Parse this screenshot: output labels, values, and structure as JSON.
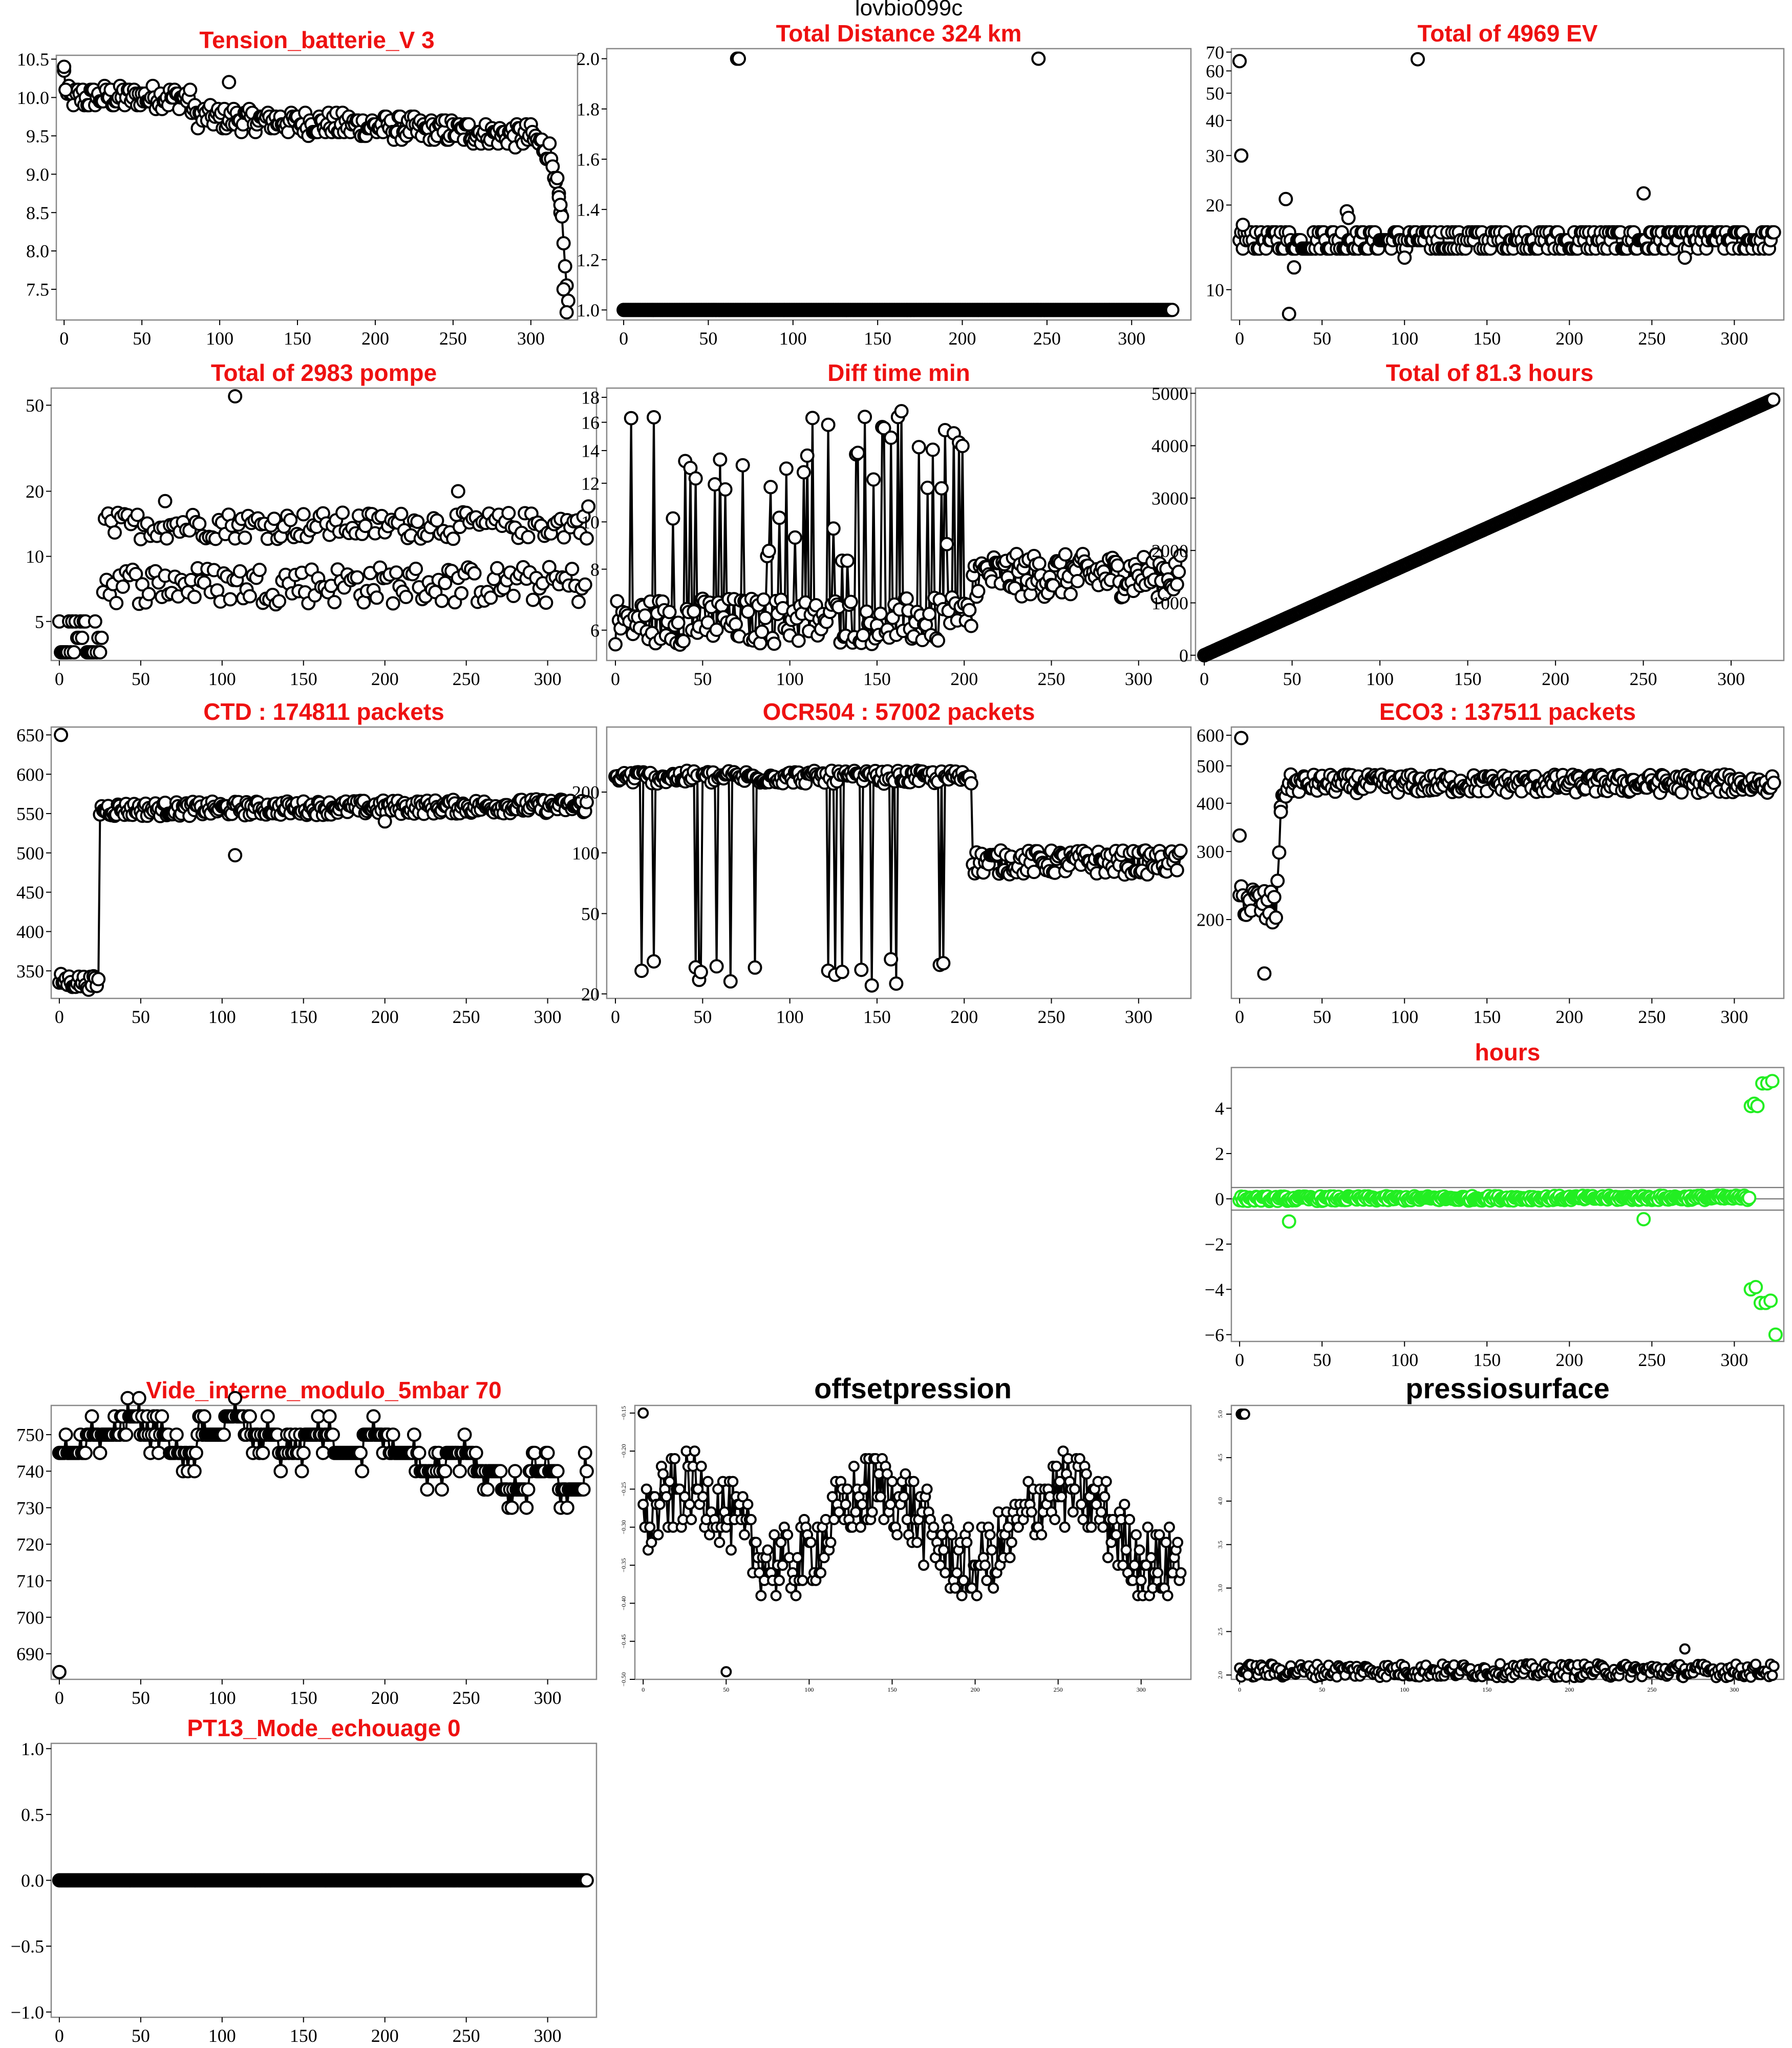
{
  "figure_title": "lovbio099c",
  "chart_data": [
    {
      "id": "tension",
      "type": "scatter",
      "title": "Tension_batterie_V 3",
      "title_color": "red",
      "connected": true,
      "xlim": [
        -5,
        330
      ],
      "ylim": [
        7.1,
        10.55
      ],
      "xticks": [
        0,
        50,
        100,
        150,
        200,
        250,
        300
      ],
      "yticks": [
        7.5,
        8.0,
        8.5,
        9.0,
        9.5,
        10.0,
        10.5
      ],
      "x_start": 0,
      "gen": {
        "kind": "ramp",
        "n": 325,
        "points": [
          [
            0,
            10.3
          ],
          [
            2,
            10.0
          ],
          [
            80,
            10.0
          ],
          [
            85,
            9.75
          ],
          [
            300,
            9.5
          ],
          [
            312,
            9.3
          ],
          [
            316,
            9.0
          ],
          [
            320,
            8.3
          ],
          [
            324,
            7.2
          ]
        ],
        "noise": 0.15,
        "step": 0.05
      },
      "extra": [
        [
          0,
          10.4
        ],
        [
          1,
          10.1
        ],
        [
          106,
          10.2
        ],
        [
          318,
          8.7
        ],
        [
          319,
          8.6
        ],
        [
          321,
          7.5
        ],
        [
          323,
          7.2
        ]
      ]
    },
    {
      "id": "distance",
      "type": "scatter",
      "title": "Total Distance  324  km",
      "title_color": "red",
      "connected": false,
      "xlim": [
        -10,
        335
      ],
      "ylim": [
        0.96,
        2.04
      ],
      "xticks": [
        0,
        50,
        100,
        150,
        200,
        250,
        300
      ],
      "yticks": [
        1.0,
        1.2,
        1.4,
        1.6,
        1.8,
        2.0
      ],
      "x_start": 0,
      "gen": {
        "kind": "const",
        "n": 325,
        "value": 1.0
      },
      "extra": [
        [
          67,
          2.0
        ],
        [
          68,
          2.0
        ],
        [
          245,
          2.0
        ]
      ]
    },
    {
      "id": "ev",
      "type": "scatter",
      "title": "Total of  4969  EV",
      "title_color": "red",
      "connected": false,
      "log": true,
      "xlim": [
        -5,
        330
      ],
      "ylim": [
        7.8,
        72
      ],
      "xticks": [
        0,
        50,
        100,
        150,
        200,
        250,
        300
      ],
      "yticks": [
        10,
        20,
        30,
        40,
        50,
        60,
        70
      ],
      "x_start": 0,
      "gen": {
        "kind": "levels",
        "n": 325,
        "values": [
          14,
          15,
          16
        ]
      },
      "extra": [
        [
          0,
          65
        ],
        [
          1,
          30
        ],
        [
          2,
          17
        ],
        [
          30,
          8.2
        ],
        [
          28,
          21
        ],
        [
          33,
          12
        ],
        [
          65,
          19
        ],
        [
          66,
          18
        ],
        [
          108,
          66
        ],
        [
          100,
          13
        ],
        [
          245,
          22
        ],
        [
          270,
          13
        ]
      ]
    },
    {
      "id": "pompe",
      "type": "scatter",
      "title": "Total of  2983  pompe",
      "title_color": "red",
      "connected": false,
      "log": true,
      "xlim": [
        -5,
        330
      ],
      "ylim": [
        3.3,
        60
      ],
      "xticks": [
        0,
        50,
        100,
        150,
        200,
        250,
        300
      ],
      "yticks": [
        5,
        10,
        20,
        50
      ],
      "x_start": 0,
      "gen": {
        "kind": "pompe",
        "n": 325
      },
      "extra": [
        [
          108,
          55
        ],
        [
          65,
          18
        ],
        [
          245,
          20
        ],
        [
          325,
          17
        ]
      ]
    },
    {
      "id": "difftime",
      "type": "scatter",
      "title": "Diff time min",
      "title_color": "red",
      "connected": true,
      "log": true,
      "xlim": [
        -5,
        330
      ],
      "ylim": [
        5.2,
        18.8
      ],
      "xticks": [
        0,
        50,
        100,
        150,
        200,
        250,
        300
      ],
      "yticks": [
        6,
        8,
        10,
        12,
        14,
        16,
        18
      ],
      "x_start": 0,
      "gen": {
        "kind": "difftime",
        "n": 325
      },
      "extra": []
    },
    {
      "id": "hours_total",
      "type": "scatter",
      "title": "Total of  81.3  hours",
      "title_color": "red",
      "connected": true,
      "xlim": [
        -5,
        330
      ],
      "ylim": [
        -100,
        5100
      ],
      "xticks": [
        0,
        50,
        100,
        150,
        200,
        250,
        300
      ],
      "yticks": [
        0,
        1000,
        2000,
        3000,
        4000,
        5000
      ],
      "x_start": 0,
      "gen": {
        "kind": "linear",
        "n": 325,
        "from": 0,
        "to": 4880
      },
      "extra": []
    },
    {
      "id": "ctd",
      "type": "scatter",
      "title": "CTD  : 174811  packets",
      "title_color": "red",
      "connected": true,
      "xlim": [
        -5,
        330
      ],
      "ylim": [
        315,
        660
      ],
      "xticks": [
        0,
        50,
        100,
        150,
        200,
        250,
        300
      ],
      "yticks": [
        350,
        400,
        450,
        500,
        550,
        600,
        650
      ],
      "x_start": 0,
      "gen": {
        "kind": "ramp",
        "n": 325,
        "points": [
          [
            0,
            338
          ],
          [
            24,
            334
          ],
          [
            25,
            555
          ],
          [
            324,
            560
          ]
        ],
        "noise": 9,
        "step": 0
      },
      "extra": [
        [
          1,
          650
        ],
        [
          108,
          497
        ],
        [
          200,
          540
        ]
      ]
    },
    {
      "id": "ocr",
      "type": "scatter",
      "title": "OCR504  : 57002  packets",
      "title_color": "red",
      "connected": true,
      "log": true,
      "xlim": [
        -5,
        330
      ],
      "ylim": [
        19,
        420
      ],
      "xticks": [
        0,
        50,
        100,
        150,
        200,
        250,
        300
      ],
      "yticks": [
        20,
        50,
        100,
        200
      ],
      "x_start": 0,
      "gen": {
        "kind": "ocr",
        "n": 325
      },
      "extra": []
    },
    {
      "id": "eco",
      "type": "scatter",
      "title": "ECO3  : 137511  packets",
      "title_color": "red",
      "connected": true,
      "log": true,
      "xlim": [
        -5,
        330
      ],
      "ylim": [
        125,
        630
      ],
      "xticks": [
        0,
        50,
        100,
        150,
        200,
        250,
        300
      ],
      "yticks": [
        200,
        300,
        400,
        500,
        600
      ],
      "x_start": 0,
      "gen": {
        "kind": "ramp",
        "n": 325,
        "points": [
          [
            0,
            230
          ],
          [
            22,
            210
          ],
          [
            26,
            420
          ],
          [
            30,
            450
          ],
          [
            324,
            450
          ]
        ],
        "noise": 25,
        "step": 0
      },
      "extra": [
        [
          0,
          330
        ],
        [
          1,
          590
        ],
        [
          15,
          145
        ],
        [
          25,
          380
        ]
      ]
    },
    {
      "id": "hours_green",
      "type": "scatter",
      "title": "hours",
      "title_color": "red",
      "connected": false,
      "color": "green",
      "xlim": [
        -5,
        330
      ],
      "ylim": [
        -6.3,
        5.8
      ],
      "xticks": [
        0,
        50,
        100,
        150,
        200,
        250,
        300
      ],
      "yticks": [
        -6,
        -4,
        -2,
        0,
        2,
        4
      ],
      "hlines": [
        0.5,
        0,
        -0.5
      ],
      "x_start": 0,
      "gen": {
        "kind": "ramp",
        "n": 310,
        "points": [
          [
            0,
            0
          ],
          [
            309,
            0.05
          ]
        ],
        "noise": 0.1,
        "step": 0
      },
      "extra": [
        [
          30,
          -1.0
        ],
        [
          245,
          -0.9
        ],
        [
          310,
          4.1
        ],
        [
          312,
          4.2
        ],
        [
          314,
          4.1
        ],
        [
          317,
          5.1
        ],
        [
          320,
          5.1
        ],
        [
          323,
          5.2
        ],
        [
          310,
          -4.0
        ],
        [
          313,
          -3.9
        ],
        [
          316,
          -4.6
        ],
        [
          319,
          -4.6
        ],
        [
          322,
          -4.5
        ],
        [
          325,
          -6.0
        ]
      ]
    },
    {
      "id": "vide",
      "type": "scatter",
      "title": "Vide_interne_modulo_5mbar 70",
      "title_color": "red",
      "connected": true,
      "xlim": [
        -5,
        330
      ],
      "ylim": [
        683,
        758
      ],
      "xticks": [
        0,
        50,
        100,
        150,
        200,
        250,
        300
      ],
      "yticks": [
        690,
        700,
        710,
        720,
        730,
        740,
        750
      ],
      "x_start": 0,
      "gen": {
        "kind": "vide",
        "n": 325
      },
      "extra": [
        [
          0,
          685
        ]
      ]
    },
    {
      "id": "offset",
      "type": "scatter",
      "title": "offsetpression",
      "title_color": "black",
      "connected": true,
      "xlim": [
        -5,
        330
      ],
      "ylim": [
        -0.5,
        -0.14
      ],
      "xticks": [
        0,
        50,
        100,
        150,
        200,
        250,
        300
      ],
      "yticks": [
        -0.5,
        -0.45,
        -0.4,
        -0.35,
        -0.3,
        -0.25,
        -0.2,
        -0.15
      ],
      "x_start": 0,
      "gen": {
        "kind": "offset",
        "n": 325
      },
      "extra": [
        [
          0,
          -0.15
        ],
        [
          50,
          -0.49
        ]
      ]
    },
    {
      "id": "surface",
      "type": "scatter",
      "title": "pressiosurface",
      "title_color": "black",
      "connected": true,
      "xlim": [
        -5,
        330
      ],
      "ylim": [
        1.95,
        5.1
      ],
      "xticks": [
        0,
        50,
        100,
        150,
        200,
        250,
        300
      ],
      "yticks": [
        2.0,
        2.5,
        3.0,
        3.5,
        4.0,
        4.5,
        5.0
      ],
      "x_start": 0,
      "gen": {
        "kind": "ramp",
        "n": 325,
        "points": [
          [
            0,
            2.05
          ],
          [
            324,
            2.05
          ]
        ],
        "noise": 0.08,
        "step": 0
      },
      "extra": [
        [
          1,
          5.0
        ],
        [
          2,
          5.0
        ],
        [
          3,
          5.0
        ],
        [
          5,
          2.0
        ],
        [
          270,
          2.3
        ]
      ]
    },
    {
      "id": "pt13",
      "type": "scatter",
      "title": "PT13_Mode_echouage  0",
      "title_color": "red",
      "connected": false,
      "xlim": [
        -5,
        330
      ],
      "ylim": [
        -1.04,
        1.04
      ],
      "xticks": [
        0,
        50,
        100,
        150,
        200,
        250,
        300
      ],
      "yticks": [
        -1.0,
        -0.5,
        0.0,
        0.5,
        1.0
      ],
      "x_start": 0,
      "gen": {
        "kind": "const",
        "n": 325,
        "value": 0.0
      },
      "extra": []
    }
  ]
}
